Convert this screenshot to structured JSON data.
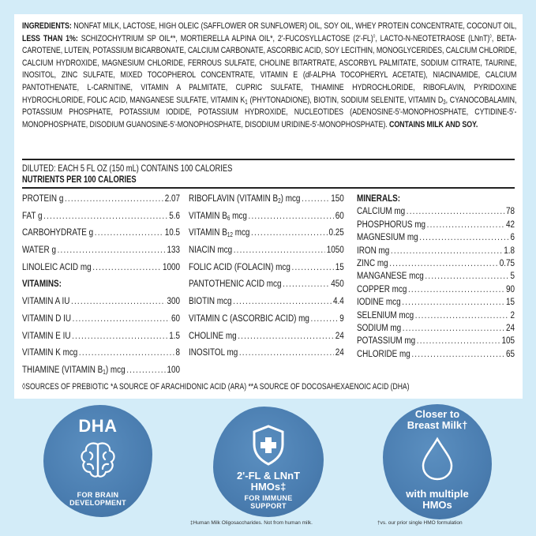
{
  "ingredients": [
    {
      "t": "INGREDIENTS: ",
      "b": true
    },
    {
      "t": "NONFAT MILK, LACTOSE, HIGH OLEIC (SAFFLOWER OR SUNFLOWER) OIL, SOY OIL, WHEY PROTEIN CONCENTRATE, COCONUT OIL, "
    },
    {
      "t": "LESS THAN 1%: ",
      "b": true
    },
    {
      "t": "SCHIZOCHYTRIUM SP OIL**, MORTIERELLA ALPINA OIL*, 2'-FUCOSYLLACTOSE (2'-FL)"
    },
    {
      "t": "◊",
      "sup": true
    },
    {
      "t": ", LACTO-N-NEOTETRAOSE (LNnT)"
    },
    {
      "t": "◊",
      "sup": true
    },
    {
      "t": ", BETA-CAROTENE, LUTEIN, POTASSIUM BICARBONATE, CALCIUM CARBONATE, ASCORBIC ACID, SOY LECITHIN, MONOGLYCERIDES, CALCIUM CHLORIDE, CALCIUM HYDROXIDE, MAGNESIUM CHLORIDE, FERROUS SULFATE, CHOLINE BITARTRATE, ASCORBYL PALMITATE, SODIUM CITRATE, TAURINE, INOSITOL, ZINC SULFATE, MIXED TOCOPHEROL CONCENTRATE, VITAMIN E ("
    },
    {
      "t": "dl",
      "i": true
    },
    {
      "t": "-ALPHA TOCOPHERYL ACETATE), NIACINAMIDE, CALCIUM PANTOTHENATE, L-CARNITINE, VITAMIN A PALMITATE, CUPRIC SULFATE, THIAMINE HYDROCHLORIDE, RIBOFLAVIN, PYRIDOXINE HYDROCHLORIDE, FOLIC ACID, MANGANESE SULFATE, VITAMIN K"
    },
    {
      "t": "1",
      "sub": true
    },
    {
      "t": " (PHYTONADIONE), BIOTIN, SODIUM SELENITE, VITAMIN D"
    },
    {
      "t": "3",
      "sub": true
    },
    {
      "t": ", CYANOCOBALAMIN, POTASSIUM PHOSPHATE, POTASSIUM IODIDE, POTASSIUM HYDROXIDE, NUCLEOTIDES (ADENOSINE-5'-MONOPHOSPHATE, CYTIDINE-5'-MONOPHOSPHATE, DISODIUM GUANOSINE-5'-MONOPHOSPHATE, DISODIUM URIDINE-5'-MONOPHOSPHATE). "
    },
    {
      "t": "CONTAINS MILK AND SOY.",
      "b": true
    }
  ],
  "diluted": "DILUTED: EACH 5 FL OZ (150 mL) CONTAINS 100 CALORIES",
  "nutrients_heading": "NUTRIENTS PER 100 CALORIES",
  "columns": [
    [
      {
        "label": "PROTEIN g",
        "value": "2.07"
      },
      {
        "label": "FAT g",
        "value": "5.6"
      },
      {
        "label": "CARBOHYDRATE g",
        "value": "10.5"
      },
      {
        "label": "WATER g",
        "value": "133"
      },
      {
        "label": "LINOLEIC ACID mg",
        "value": "1000"
      },
      {
        "heading": "VITAMINS:"
      },
      {
        "label": "VITAMIN A IU",
        "value": "300"
      },
      {
        "label": "VITAMIN D IU",
        "value": "60"
      },
      {
        "label": "VITAMIN E IU",
        "value": "1.5"
      },
      {
        "label": "VITAMIN K mcg",
        "value": "8"
      },
      {
        "label": "THIAMINE (VITAMIN B",
        "sub": "1",
        "rest": ") mcg",
        "value": "100"
      }
    ],
    [
      {
        "label": "RIBOFLAVIN (VITAMIN B",
        "sub": "2",
        "rest": ") mcg",
        "value": "150"
      },
      {
        "label": "VITAMIN B",
        "sub": "6",
        "rest": " mcg",
        "value": "60"
      },
      {
        "label": "VITAMIN B",
        "sub": "12",
        "rest": " mcg",
        "value": "0.25"
      },
      {
        "label": "NIACIN mcg",
        "value": "1050"
      },
      {
        "label": "FOLIC ACID (FOLACIN) mcg",
        "value": "15"
      },
      {
        "label": "PANTOTHENIC ACID mcg",
        "value": "450"
      },
      {
        "label": "BIOTIN mcg",
        "value": "4.4"
      },
      {
        "label": "VITAMIN C (ASCORBIC ACID) mg",
        "value": "9"
      },
      {
        "label": "CHOLINE mg",
        "value": "24"
      },
      {
        "label": "INOSITOL mg",
        "value": "24"
      }
    ],
    [
      {
        "heading": "MINERALS:"
      },
      {
        "label": "CALCIUM mg",
        "value": "78"
      },
      {
        "label": "PHOSPHORUS mg",
        "value": "42"
      },
      {
        "label": "MAGNESIUM mg",
        "value": "6"
      },
      {
        "label": "IRON mg",
        "value": "1.8"
      },
      {
        "label": "ZINC mg",
        "value": "0.75"
      },
      {
        "label": "MANGANESE mcg",
        "value": "5"
      },
      {
        "label": "COPPER mcg",
        "value": "90"
      },
      {
        "label": "IODINE mcg",
        "value": "15"
      },
      {
        "label": "SELENIUM mcg",
        "value": "2"
      },
      {
        "label": "SODIUM mg",
        "value": "24"
      },
      {
        "label": "POTASSIUM mg",
        "value": "105"
      },
      {
        "label": "CHLORIDE mg",
        "value": "65"
      }
    ]
  ],
  "footnote": "◊SOURCES OF PREBIOTIC *A SOURCE OF ARACHIDONIC ACID (ARA) **A SOURCE OF DOCOSAHEXAENOIC ACID (DHA)",
  "badges": {
    "dha": {
      "title": "DHA",
      "icon": "brain-icon",
      "line1": "FOR BRAIN",
      "line2": "DEVELOPMENT"
    },
    "hmo": {
      "icon": "shield-plus-icon",
      "line1": "2'-FL & LNnT",
      "line2": "HMOs‡",
      "line3": "FOR IMMUNE",
      "line4": "SUPPORT",
      "footnote": "‡Human Milk Oligosaccharides. Not from human milk."
    },
    "milk": {
      "line1": "Closer to",
      "line2": "Breast Milk†",
      "icon": "drop-icon",
      "line3": "with multiple",
      "line4": "HMOs",
      "footnote": "†vs. our prior single HMO formulation"
    }
  },
  "colors": {
    "background": "#d3ecf8",
    "badge": "#4a7db0",
    "panel": "#ffffff"
  }
}
